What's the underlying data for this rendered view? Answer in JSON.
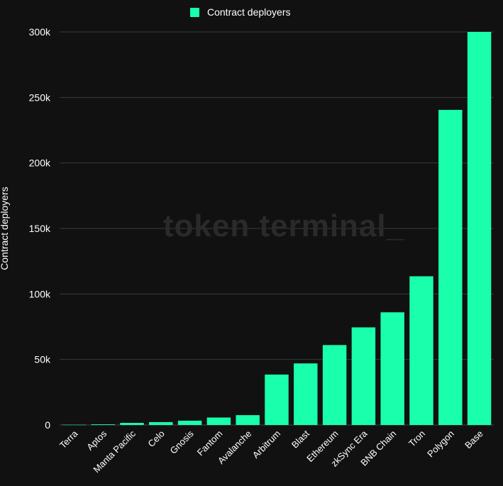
{
  "colors": {
    "background": "#111111",
    "bar": "#19ffac",
    "grid": "#3a3a3a",
    "text": "#ffffff",
    "watermark": "#2a2a2a"
  },
  "watermark": "token terminal_",
  "chart_data": {
    "type": "bar",
    "title": "",
    "xlabel": "",
    "ylabel": "Contract deployers",
    "legend": {
      "position": "top-center",
      "entries": [
        "Contract deployers"
      ]
    },
    "grid": true,
    "ylim": [
      0,
      300000
    ],
    "yticks": [
      0,
      50000,
      100000,
      150000,
      200000,
      250000,
      300000
    ],
    "ytick_labels": [
      "0",
      "50k",
      "100k",
      "150k",
      "200k",
      "250k",
      "300k"
    ],
    "categories": [
      "Terra",
      "Aptos",
      "Manta Pacific",
      "Celo",
      "Gnosis",
      "Fantom",
      "Avalanche",
      "Arbitrum",
      "Blast",
      "Ethereum",
      "zkSync Era",
      "BNB Chain",
      "Tron",
      "Polygon",
      "Base"
    ],
    "series": [
      {
        "name": "Contract deployers",
        "values": [
          200,
          500,
          1600,
          2200,
          3300,
          5700,
          7500,
          38500,
          47000,
          61000,
          74500,
          86000,
          113500,
          240500,
          300000
        ]
      }
    ]
  }
}
